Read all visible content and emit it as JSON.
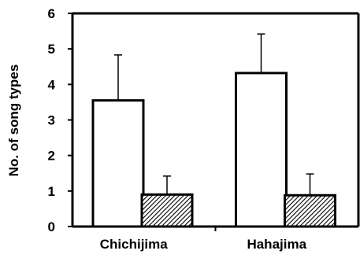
{
  "chart_data": {
    "type": "bar",
    "title": "",
    "xlabel": "",
    "ylabel": "No. of song types",
    "categories": [
      "Chichijima",
      "Hahajima"
    ],
    "ylim": [
      0,
      6
    ],
    "yticks": [
      0,
      1,
      2,
      3,
      4,
      5,
      6
    ],
    "grid": false,
    "legend": "none",
    "series": [
      {
        "values": [
          3.55,
          4.32
        ],
        "errors": [
          1.28,
          1.1
        ],
        "fill": "#ffffff",
        "pattern": "none"
      },
      {
        "values": [
          0.9,
          0.88
        ],
        "errors": [
          0.52,
          0.6
        ],
        "fill": "#ffffff",
        "pattern": "diagonal-hatch"
      }
    ]
  }
}
